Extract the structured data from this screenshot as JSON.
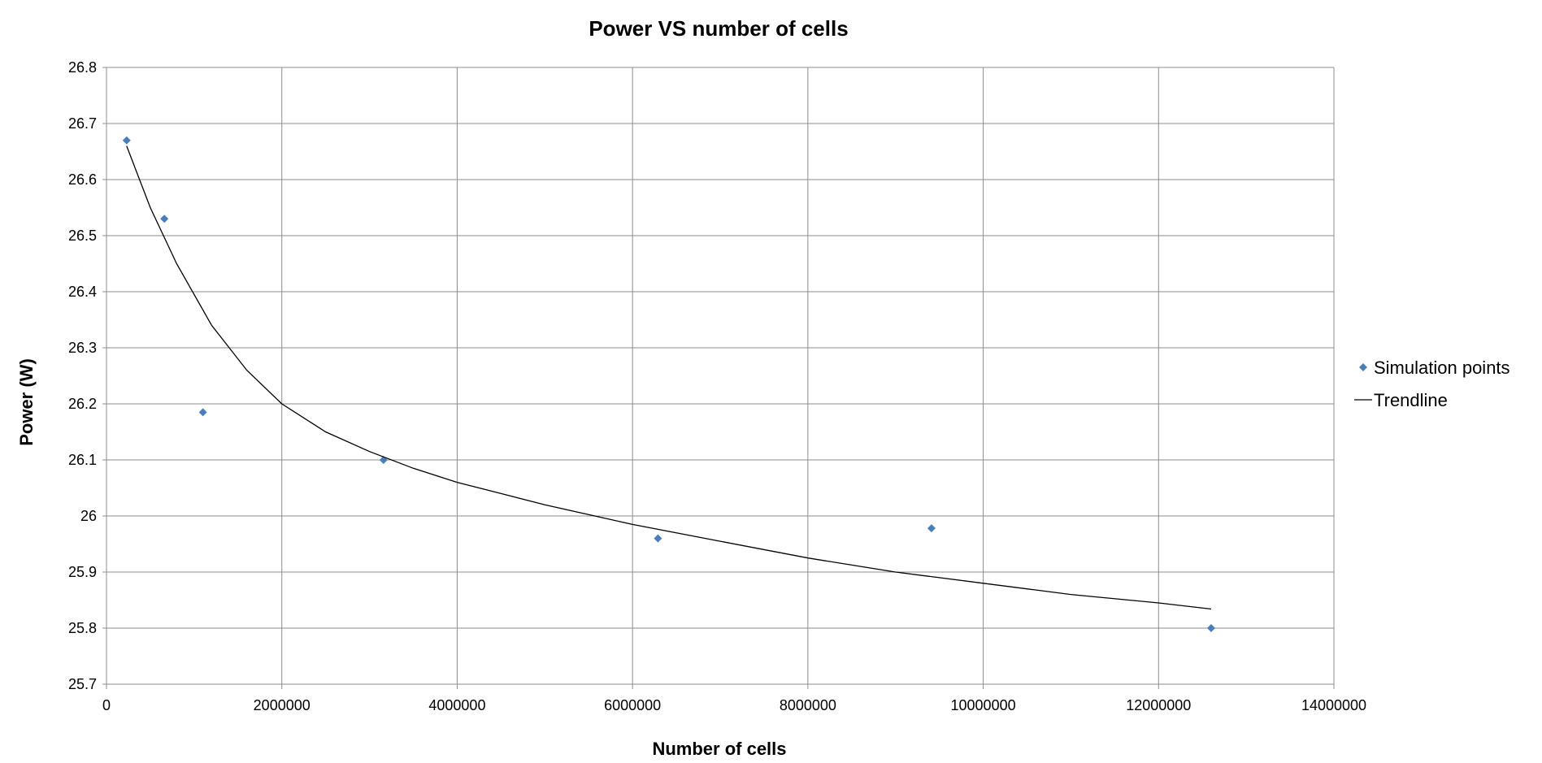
{
  "chart_data": {
    "type": "scatter",
    "title": "Power VS number of cells",
    "xlabel": "Number of cells",
    "ylabel": "Power (W)",
    "xlim": [
      0,
      14000000
    ],
    "ylim": [
      25.7,
      26.8
    ],
    "x_ticks": [
      0,
      2000000,
      4000000,
      6000000,
      8000000,
      10000000,
      12000000,
      14000000
    ],
    "x_tick_labels": [
      "0",
      "2000000",
      "4000000",
      "6000000",
      "8000000",
      "10000000",
      "12000000",
      "14000000"
    ],
    "y_ticks": [
      25.7,
      25.8,
      25.9,
      26,
      26.1,
      26.2,
      26.3,
      26.4,
      26.5,
      26.6,
      26.7,
      26.8
    ],
    "y_tick_labels": [
      "25.7",
      "25.8",
      "25.9",
      "26",
      "26.1",
      "26.2",
      "26.3",
      "26.4",
      "26.5",
      "26.6",
      "26.7",
      "26.8"
    ],
    "grid": true,
    "legend_position": "right",
    "series": [
      {
        "name": "Simulation points",
        "kind": "scatter",
        "marker": "diamond",
        "color": "#4a7ebb",
        "points": [
          {
            "x": 230000,
            "y": 26.67
          },
          {
            "x": 660000,
            "y": 26.53
          },
          {
            "x": 1100000,
            "y": 26.185
          },
          {
            "x": 3160000,
            "y": 26.1
          },
          {
            "x": 6290000,
            "y": 25.96
          },
          {
            "x": 9410000,
            "y": 25.978
          },
          {
            "x": 12600000,
            "y": 25.8
          }
        ]
      },
      {
        "name": "Trendline",
        "kind": "line",
        "color": "#000000",
        "points": [
          {
            "x": 230000,
            "y": 26.66
          },
          {
            "x": 500000,
            "y": 26.55
          },
          {
            "x": 800000,
            "y": 26.45
          },
          {
            "x": 1200000,
            "y": 26.34
          },
          {
            "x": 1600000,
            "y": 26.26
          },
          {
            "x": 2000000,
            "y": 26.2
          },
          {
            "x": 2500000,
            "y": 26.15
          },
          {
            "x": 3000000,
            "y": 26.115
          },
          {
            "x": 3500000,
            "y": 26.085
          },
          {
            "x": 4000000,
            "y": 26.06
          },
          {
            "x": 4500000,
            "y": 26.04
          },
          {
            "x": 5000000,
            "y": 26.02
          },
          {
            "x": 6000000,
            "y": 25.985
          },
          {
            "x": 7000000,
            "y": 25.955
          },
          {
            "x": 8000000,
            "y": 25.925
          },
          {
            "x": 9000000,
            "y": 25.9
          },
          {
            "x": 10000000,
            "y": 25.88
          },
          {
            "x": 11000000,
            "y": 25.86
          },
          {
            "x": 12000000,
            "y": 25.845
          },
          {
            "x": 12600000,
            "y": 25.834
          }
        ]
      }
    ]
  }
}
